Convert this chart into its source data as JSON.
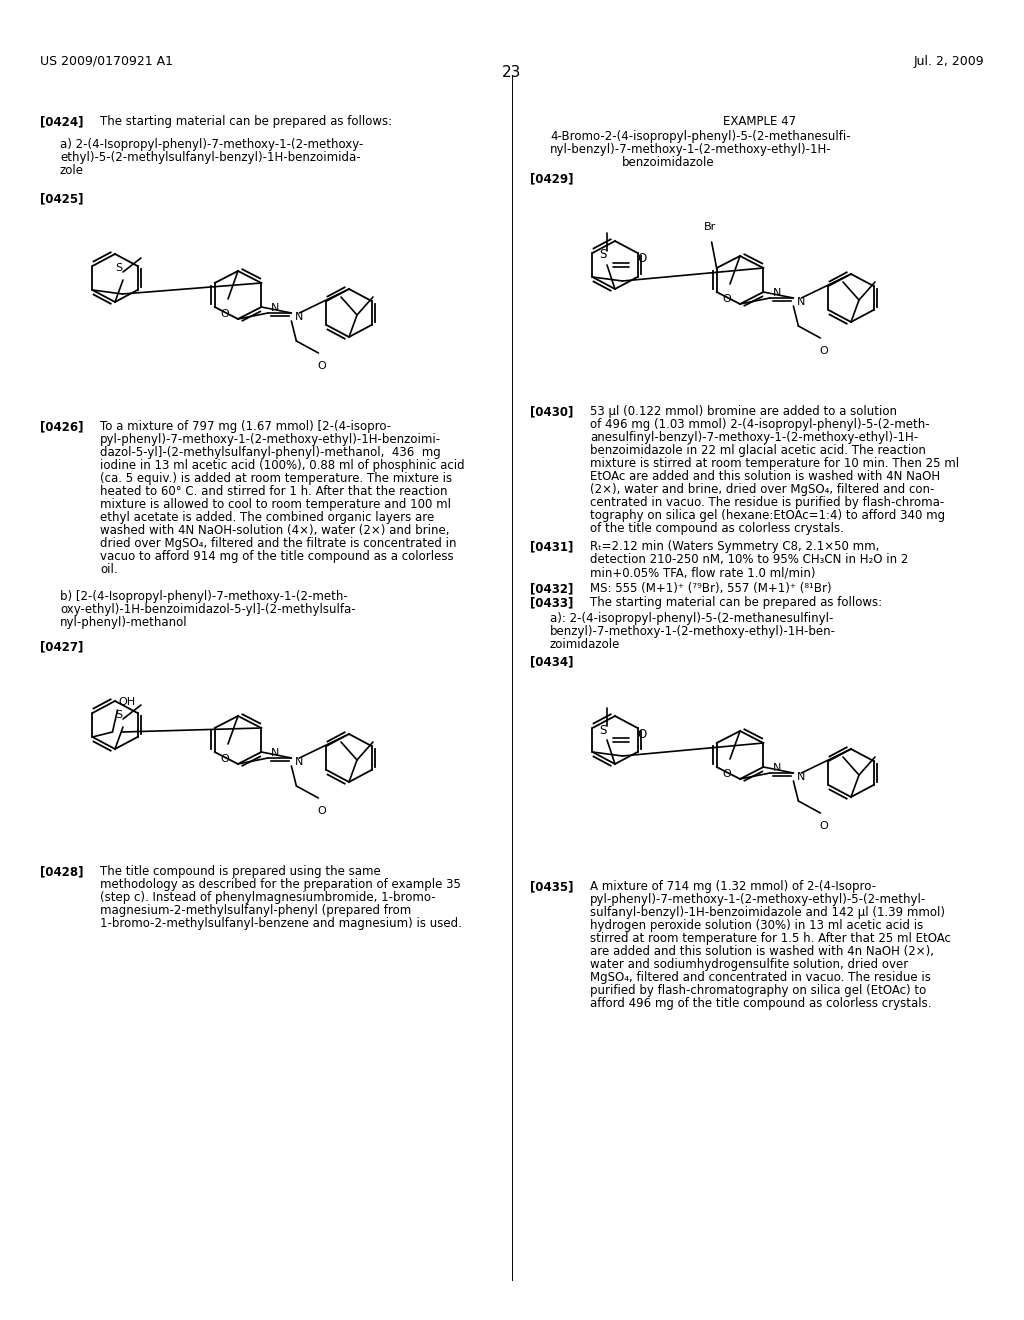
{
  "background_color": "#ffffff",
  "page_header_left": "US 2009/0170921 A1",
  "page_header_right": "Jul. 2, 2009",
  "page_number": "23"
}
